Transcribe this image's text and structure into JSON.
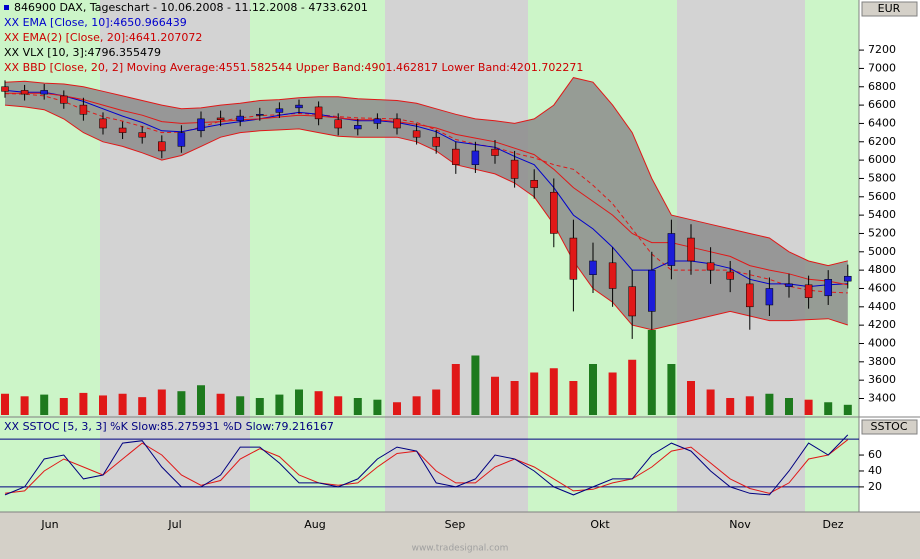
{
  "chart_data": {
    "type": "candlestick",
    "title": "846900  DAX, Tageschart - 10.06.2008 - 11.12.2008 - 4733.6201",
    "currency": "EUR",
    "legend": [
      {
        "text": "XX EMA [Close, 10]:4650.966439",
        "color": "#0000cc"
      },
      {
        "text": "XX EMA(2) [Close, 20]:4641.207072",
        "color": "#cc0000"
      },
      {
        "text": "XX VLX [10, 3]:4796.355479",
        "color": "#000000"
      },
      {
        "text": "XX BBD [Close, 20, 2] Moving Average:4551.582544 Upper Band:4901.462817 Lower Band:4201.702271",
        "color": "#cc0000"
      }
    ],
    "x_labels": [
      "Jun",
      "Jul",
      "Aug",
      "Sep",
      "Okt",
      "Nov",
      "Dez"
    ],
    "up_color": "#1c1cd8",
    "down_color": "#e01818",
    "volume_up_color": "#1e7a1e",
    "volume_down_color": "#e01818",
    "open": [
      6800,
      6760,
      6720,
      6700,
      6600,
      6450,
      6350,
      6300,
      6200,
      6150,
      6320,
      6460,
      6430,
      6490,
      6520,
      6570,
      6580,
      6440,
      6340,
      6400,
      6450,
      6320,
      6250,
      6120,
      5950,
      6120,
      6000,
      5780,
      5650,
      5150,
      4750,
      4880,
      4620,
      4350,
      4850,
      5150,
      4880,
      4780,
      4650,
      4420,
      4620,
      4640,
      4520,
      4680
    ],
    "high": [
      6870,
      6820,
      6830,
      6760,
      6680,
      6520,
      6420,
      6370,
      6270,
      6380,
      6530,
      6540,
      6550,
      6570,
      6630,
      6660,
      6640,
      6510,
      6450,
      6510,
      6510,
      6400,
      6330,
      6200,
      6200,
      6220,
      6100,
      5900,
      5800,
      5350,
      5100,
      5050,
      4800,
      5000,
      5350,
      5300,
      5050,
      4900,
      4800,
      4720,
      4760,
      4740,
      4800,
      4860
    ],
    "low": [
      6680,
      6650,
      6660,
      6560,
      6430,
      6280,
      6230,
      6180,
      6020,
      6080,
      6250,
      6370,
      6370,
      6430,
      6460,
      6510,
      6380,
      6270,
      6270,
      6340,
      6280,
      6170,
      6070,
      5850,
      5860,
      5960,
      5700,
      5580,
      5050,
      4350,
      4550,
      4400,
      4050,
      4150,
      4700,
      4750,
      4650,
      4560,
      4150,
      4300,
      4500,
      4380,
      4420,
      4600
    ],
    "close": [
      6750,
      6720,
      6760,
      6620,
      6500,
      6350,
      6300,
      6250,
      6100,
      6300,
      6450,
      6440,
      6480,
      6500,
      6560,
      6600,
      6450,
      6350,
      6380,
      6450,
      6350,
      6250,
      6150,
      5950,
      6100,
      6050,
      5800,
      5700,
      5200,
      4700,
      4900,
      4600,
      4300,
      4800,
      5200,
      4900,
      4800,
      4700,
      4400,
      4600,
      4650,
      4500,
      4700,
      4733.6201
    ],
    "volume": [
      25,
      22,
      24,
      20,
      26,
      23,
      25,
      21,
      30,
      28,
      35,
      25,
      22,
      20,
      24,
      30,
      28,
      22,
      20,
      18,
      15,
      22,
      30,
      60,
      70,
      45,
      40,
      50,
      55,
      40,
      60,
      50,
      65,
      100,
      60,
      40,
      30,
      20,
      22,
      25,
      20,
      18,
      15,
      12
    ],
    "volume_lim": [
      0,
      100
    ],
    "bands": {
      "color": "#e01818",
      "fill": "#8c8c8c",
      "upper": [
        6850,
        6860,
        6840,
        6830,
        6800,
        6750,
        6700,
        6650,
        6600,
        6560,
        6570,
        6600,
        6620,
        6650,
        6660,
        6680,
        6690,
        6690,
        6670,
        6660,
        6650,
        6620,
        6560,
        6500,
        6450,
        6430,
        6400,
        6450,
        6600,
        6900,
        6850,
        6600,
        6300,
        5800,
        5400,
        5350,
        5300,
        5250,
        5200,
        5150,
        5000,
        4900,
        4850,
        4901.46
      ],
      "middle": [
        6725,
        6720,
        6700,
        6640,
        6550,
        6475,
        6425,
        6365,
        6300,
        6305,
        6360,
        6425,
        6460,
        6485,
        6495,
        6510,
        6495,
        6475,
        6460,
        6455,
        6450,
        6410,
        6330,
        6225,
        6175,
        6140,
        6075,
        6025,
        5950,
        5900,
        5725,
        5525,
        5250,
        4975,
        4800,
        4800,
        4800,
        4800,
        4750,
        4700,
        4625,
        4580,
        4560,
        4551.58
      ],
      "lower": [
        6600,
        6580,
        6550,
        6450,
        6300,
        6200,
        6150,
        6080,
        6000,
        6050,
        6150,
        6250,
        6300,
        6320,
        6330,
        6340,
        6300,
        6260,
        6250,
        6250,
        6250,
        6200,
        6100,
        5950,
        5900,
        5850,
        5750,
        5600,
        5300,
        4900,
        4600,
        4450,
        4200,
        4150,
        4200,
        4250,
        4300,
        4350,
        4300,
        4250,
        4250,
        4260,
        4270,
        4201.7
      ]
    },
    "indicators": [
      {
        "color": "#0000cc",
        "values": [
          6760,
          6740,
          6740,
          6700,
          6640,
          6560,
          6480,
          6410,
          6320,
          6310,
          6350,
          6390,
          6420,
          6450,
          6490,
          6520,
          6500,
          6460,
          6430,
          6430,
          6410,
          6370,
          6310,
          6200,
          6170,
          6140,
          6040,
          5950,
          5700,
          5400,
          5250,
          5050,
          4800,
          4800,
          4900,
          4900,
          4870,
          4820,
          4700,
          4650,
          4650,
          4620,
          4640,
          4650.97
        ]
      },
      {
        "color": "#e01818",
        "values": [
          6730,
          6730,
          6730,
          6700,
          6660,
          6600,
          6540,
          6490,
          6420,
          6400,
          6410,
          6420,
          6440,
          6450,
          6470,
          6490,
          6480,
          6460,
          6440,
          6440,
          6420,
          6390,
          6350,
          6280,
          6240,
          6200,
          6130,
          6060,
          5900,
          5700,
          5550,
          5400,
          5200,
          5100,
          5100,
          5050,
          5000,
          4950,
          4850,
          4800,
          4760,
          4700,
          4680,
          4641.21
        ]
      }
    ],
    "ylim": [
      3220,
      7550
    ],
    "yticks": [
      3400,
      3600,
      3800,
      4000,
      4200,
      4400,
      4600,
      4800,
      5000,
      5200,
      5400,
      5600,
      5800,
      6000,
      6200,
      6400,
      6600,
      6800,
      7000,
      7200
    ],
    "stoch": {
      "title": "XX SSTOC [5, 3, 3] %K Slow:85.275931 %D Slow:79.216167",
      "axis_title": "SSTOC",
      "ylim": [
        -9,
        104
      ],
      "yticks": [
        20,
        40,
        60
      ],
      "levels": [
        20,
        80
      ],
      "k_color": "#000080",
      "d_color": "#e01818",
      "k": [
        10,
        20,
        55,
        60,
        30,
        35,
        75,
        78,
        45,
        20,
        20,
        35,
        70,
        70,
        50,
        25,
        25,
        20,
        30,
        55,
        70,
        65,
        25,
        20,
        30,
        60,
        55,
        40,
        20,
        10,
        20,
        30,
        30,
        60,
        75,
        65,
        40,
        20,
        12,
        10,
        40,
        75,
        60,
        85.28
      ],
      "d": [
        12,
        15,
        40,
        55,
        45,
        35,
        55,
        75,
        60,
        35,
        22,
        28,
        55,
        68,
        58,
        35,
        25,
        22,
        25,
        45,
        62,
        65,
        40,
        25,
        25,
        45,
        55,
        45,
        30,
        15,
        17,
        25,
        30,
        45,
        65,
        70,
        50,
        30,
        18,
        12,
        25,
        55,
        60,
        79.22
      ]
    },
    "footer": "www.tradesignal.com"
  }
}
